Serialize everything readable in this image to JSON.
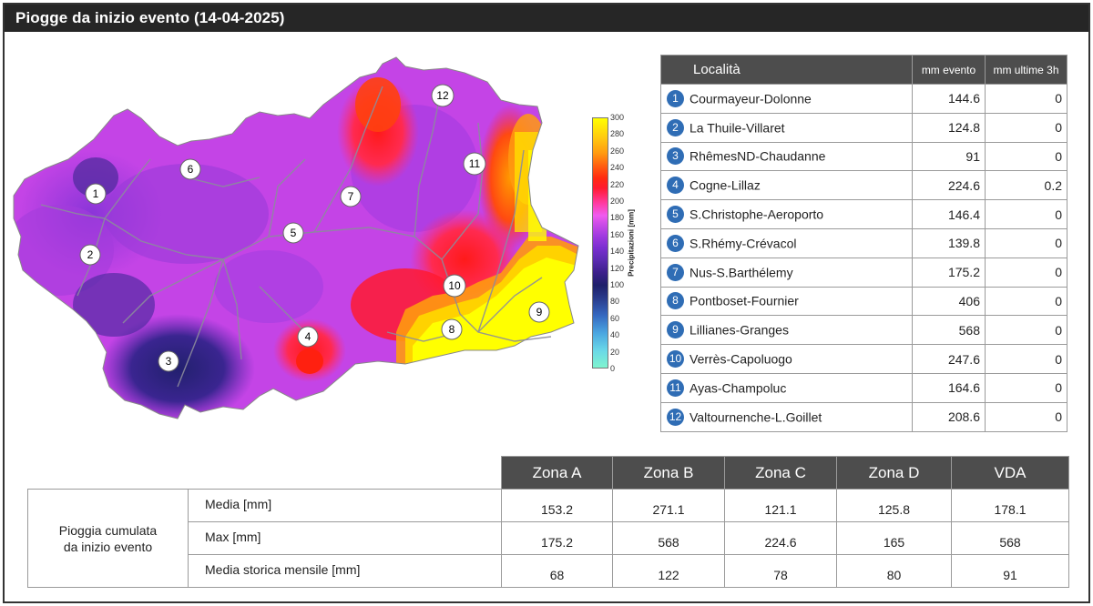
{
  "title": "Piogge da inizio evento  (14-04-2025)",
  "colorbar": {
    "title": "Precipitazioni [mm]",
    "ticks": [
      "300",
      "280",
      "260",
      "240",
      "220",
      "200",
      "180",
      "160",
      "140",
      "120",
      "100",
      "80",
      "60",
      "40",
      "20",
      "0"
    ]
  },
  "stations_table": {
    "headers": {
      "loc": "Località",
      "mm": "mm evento",
      "mm3h": "mm ultime 3h"
    },
    "rows": [
      {
        "n": "1",
        "name": "Courmayeur-Dolonne",
        "mm": "144.6",
        "mm3h": "0"
      },
      {
        "n": "2",
        "name": "La Thuile-Villaret",
        "mm": "124.8",
        "mm3h": "0"
      },
      {
        "n": "3",
        "name": "RhêmesND-Chaudanne",
        "mm": "91",
        "mm3h": "0"
      },
      {
        "n": "4",
        "name": "Cogne-Lillaz",
        "mm": "224.6",
        "mm3h": "0.2"
      },
      {
        "n": "5",
        "name": "S.Christophe-Aeroporto",
        "mm": "146.4",
        "mm3h": "0"
      },
      {
        "n": "6",
        "name": "S.Rhémy-Crévacol",
        "mm": "139.8",
        "mm3h": "0"
      },
      {
        "n": "7",
        "name": "Nus-S.Barthélemy",
        "mm": "175.2",
        "mm3h": "0"
      },
      {
        "n": "8",
        "name": "Pontboset-Fournier",
        "mm": "406",
        "mm3h": "0"
      },
      {
        "n": "9",
        "name": "Lillianes-Granges",
        "mm": "568",
        "mm3h": "0"
      },
      {
        "n": "10",
        "name": "Verrès-Capoluogo",
        "mm": "247.6",
        "mm3h": "0"
      },
      {
        "n": "11",
        "name": "Ayas-Champoluc",
        "mm": "164.6",
        "mm3h": "0"
      },
      {
        "n": "12",
        "name": "Valtournenche-L.Goillet",
        "mm": "208.6",
        "mm3h": "0"
      }
    ]
  },
  "zones_table": {
    "headers": [
      "Zona A",
      "Zona B",
      "Zona C",
      "Zona D",
      "VDA"
    ],
    "group_label_1": "Pioggia cumulata",
    "group_label_2": "da inizio evento",
    "rows": [
      {
        "label": "Media [mm]",
        "values": [
          "153.2",
          "271.1",
          "121.1",
          "125.8",
          "178.1"
        ]
      },
      {
        "label": "Max [mm]",
        "values": [
          "175.2",
          "568",
          "224.6",
          "165",
          "568"
        ]
      },
      {
        "label": "Media storica mensile [mm]",
        "values": [
          "68",
          "122",
          "78",
          "80",
          "91"
        ]
      }
    ]
  },
  "map_markers": [
    "1",
    "2",
    "3",
    "4",
    "5",
    "6",
    "7",
    "8",
    "9",
    "10",
    "11",
    "12"
  ],
  "colors": {
    "header_bg": "#4d4d4d",
    "title_bg": "#262626",
    "badge": "#2f6db5",
    "rain_low": "#1e1f6a",
    "rain_mid": "#d04ee8",
    "rain_high": "#ffff00"
  }
}
